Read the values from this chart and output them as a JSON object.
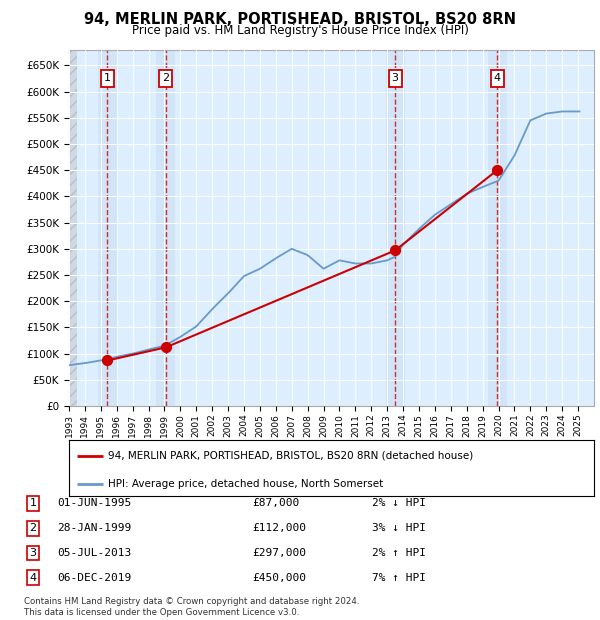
{
  "title": "94, MERLIN PARK, PORTISHEAD, BRISTOL, BS20 8RN",
  "subtitle": "Price paid vs. HM Land Registry's House Price Index (HPI)",
  "sales": [
    {
      "date": "1995-06-01",
      "price": 87000,
      "label": "1"
    },
    {
      "date": "1999-01-28",
      "price": 112000,
      "label": "2"
    },
    {
      "date": "2013-07-05",
      "price": 297000,
      "label": "3"
    },
    {
      "date": "2019-12-06",
      "price": 450000,
      "label": "4"
    }
  ],
  "sale_dates_num": [
    1995.417,
    1999.083,
    2013.5,
    2019.917
  ],
  "sale_prices": [
    87000,
    112000,
    297000,
    450000
  ],
  "hpi_anchors": [
    [
      1993.0,
      78000
    ],
    [
      1994.0,
      82000
    ],
    [
      1995.0,
      87000
    ],
    [
      1995.5,
      90000
    ],
    [
      1996.0,
      94000
    ],
    [
      1997.0,
      100000
    ],
    [
      1998.0,
      108000
    ],
    [
      1999.0,
      115000
    ],
    [
      2000.0,
      132000
    ],
    [
      2001.0,
      152000
    ],
    [
      2002.0,
      185000
    ],
    [
      2003.0,
      215000
    ],
    [
      2004.0,
      248000
    ],
    [
      2005.0,
      262000
    ],
    [
      2006.0,
      282000
    ],
    [
      2007.0,
      300000
    ],
    [
      2008.0,
      288000
    ],
    [
      2009.0,
      262000
    ],
    [
      2010.0,
      278000
    ],
    [
      2011.0,
      272000
    ],
    [
      2012.0,
      272000
    ],
    [
      2013.0,
      278000
    ],
    [
      2013.5,
      285000
    ],
    [
      2014.0,
      308000
    ],
    [
      2015.0,
      338000
    ],
    [
      2016.0,
      365000
    ],
    [
      2017.0,
      385000
    ],
    [
      2018.0,
      405000
    ],
    [
      2019.0,
      418000
    ],
    [
      2020.0,
      430000
    ],
    [
      2021.0,
      478000
    ],
    [
      2022.0,
      545000
    ],
    [
      2023.0,
      558000
    ],
    [
      2024.0,
      562000
    ],
    [
      2025.0,
      562000
    ]
  ],
  "table_rows": [
    {
      "num": "1",
      "date": "01-JUN-1995",
      "price": "£87,000",
      "pct": "2% ↓ HPI"
    },
    {
      "num": "2",
      "date": "28-JAN-1999",
      "price": "£112,000",
      "pct": "3% ↓ HPI"
    },
    {
      "num": "3",
      "date": "05-JUL-2013",
      "price": "£297,000",
      "pct": "2% ↑ HPI"
    },
    {
      "num": "4",
      "date": "06-DEC-2019",
      "price": "£450,000",
      "pct": "7% ↑ HPI"
    }
  ],
  "hpi_color": "#6699cc",
  "sale_color": "#cc0000",
  "background_plot": "#ddeeff",
  "background_fig": "#ffffff",
  "ylim": [
    0,
    680000
  ],
  "yticks": [
    0,
    50000,
    100000,
    150000,
    200000,
    250000,
    300000,
    350000,
    400000,
    450000,
    500000,
    550000,
    600000,
    650000
  ],
  "xmin": 1993,
  "xmax": 2026,
  "footer": "Contains HM Land Registry data © Crown copyright and database right 2024.\nThis data is licensed under the Open Government Licence v3.0.",
  "legend_sale_label": "94, MERLIN PARK, PORTISHEAD, BRISTOL, BS20 8RN (detached house)",
  "legend_hpi_label": "HPI: Average price, detached house, North Somerset"
}
